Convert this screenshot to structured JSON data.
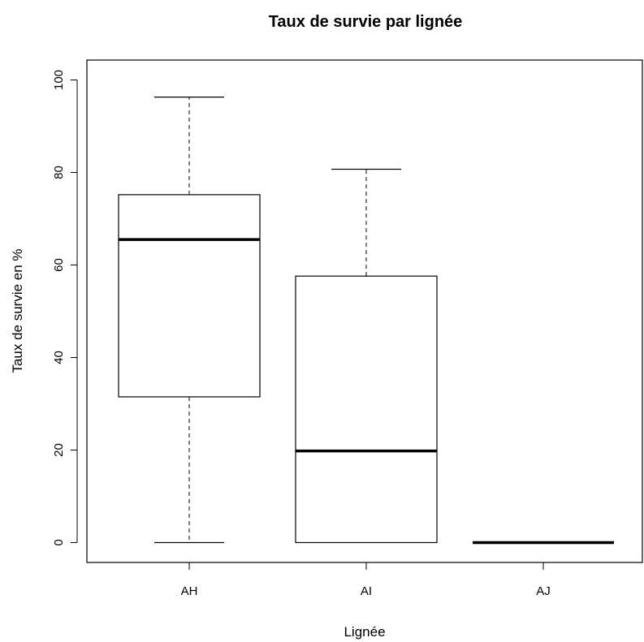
{
  "chart_data": {
    "type": "boxplot",
    "title": "Taux de survie par lignée",
    "xlabel": "Lignée",
    "ylabel": "Taux de survie en %",
    "categories": [
      "AH",
      "AI",
      "AJ"
    ],
    "boxes": [
      {
        "category": "AH",
        "whisker_low": 0,
        "q1": 31.5,
        "median": 65.5,
        "q3": 75.2,
        "whisker_high": 96.3
      },
      {
        "category": "AI",
        "whisker_low": 0,
        "q1": 0,
        "median": 19.8,
        "q3": 57.6,
        "whisker_high": 80.7
      },
      {
        "category": "AJ",
        "whisker_low": 0,
        "q1": 0,
        "median": 0,
        "q3": 0,
        "whisker_high": 0
      }
    ],
    "ylim": [
      -4.3,
      104.3
    ],
    "yticks": [
      0,
      20,
      40,
      60,
      80,
      100
    ],
    "grid": false,
    "legend": "none"
  }
}
